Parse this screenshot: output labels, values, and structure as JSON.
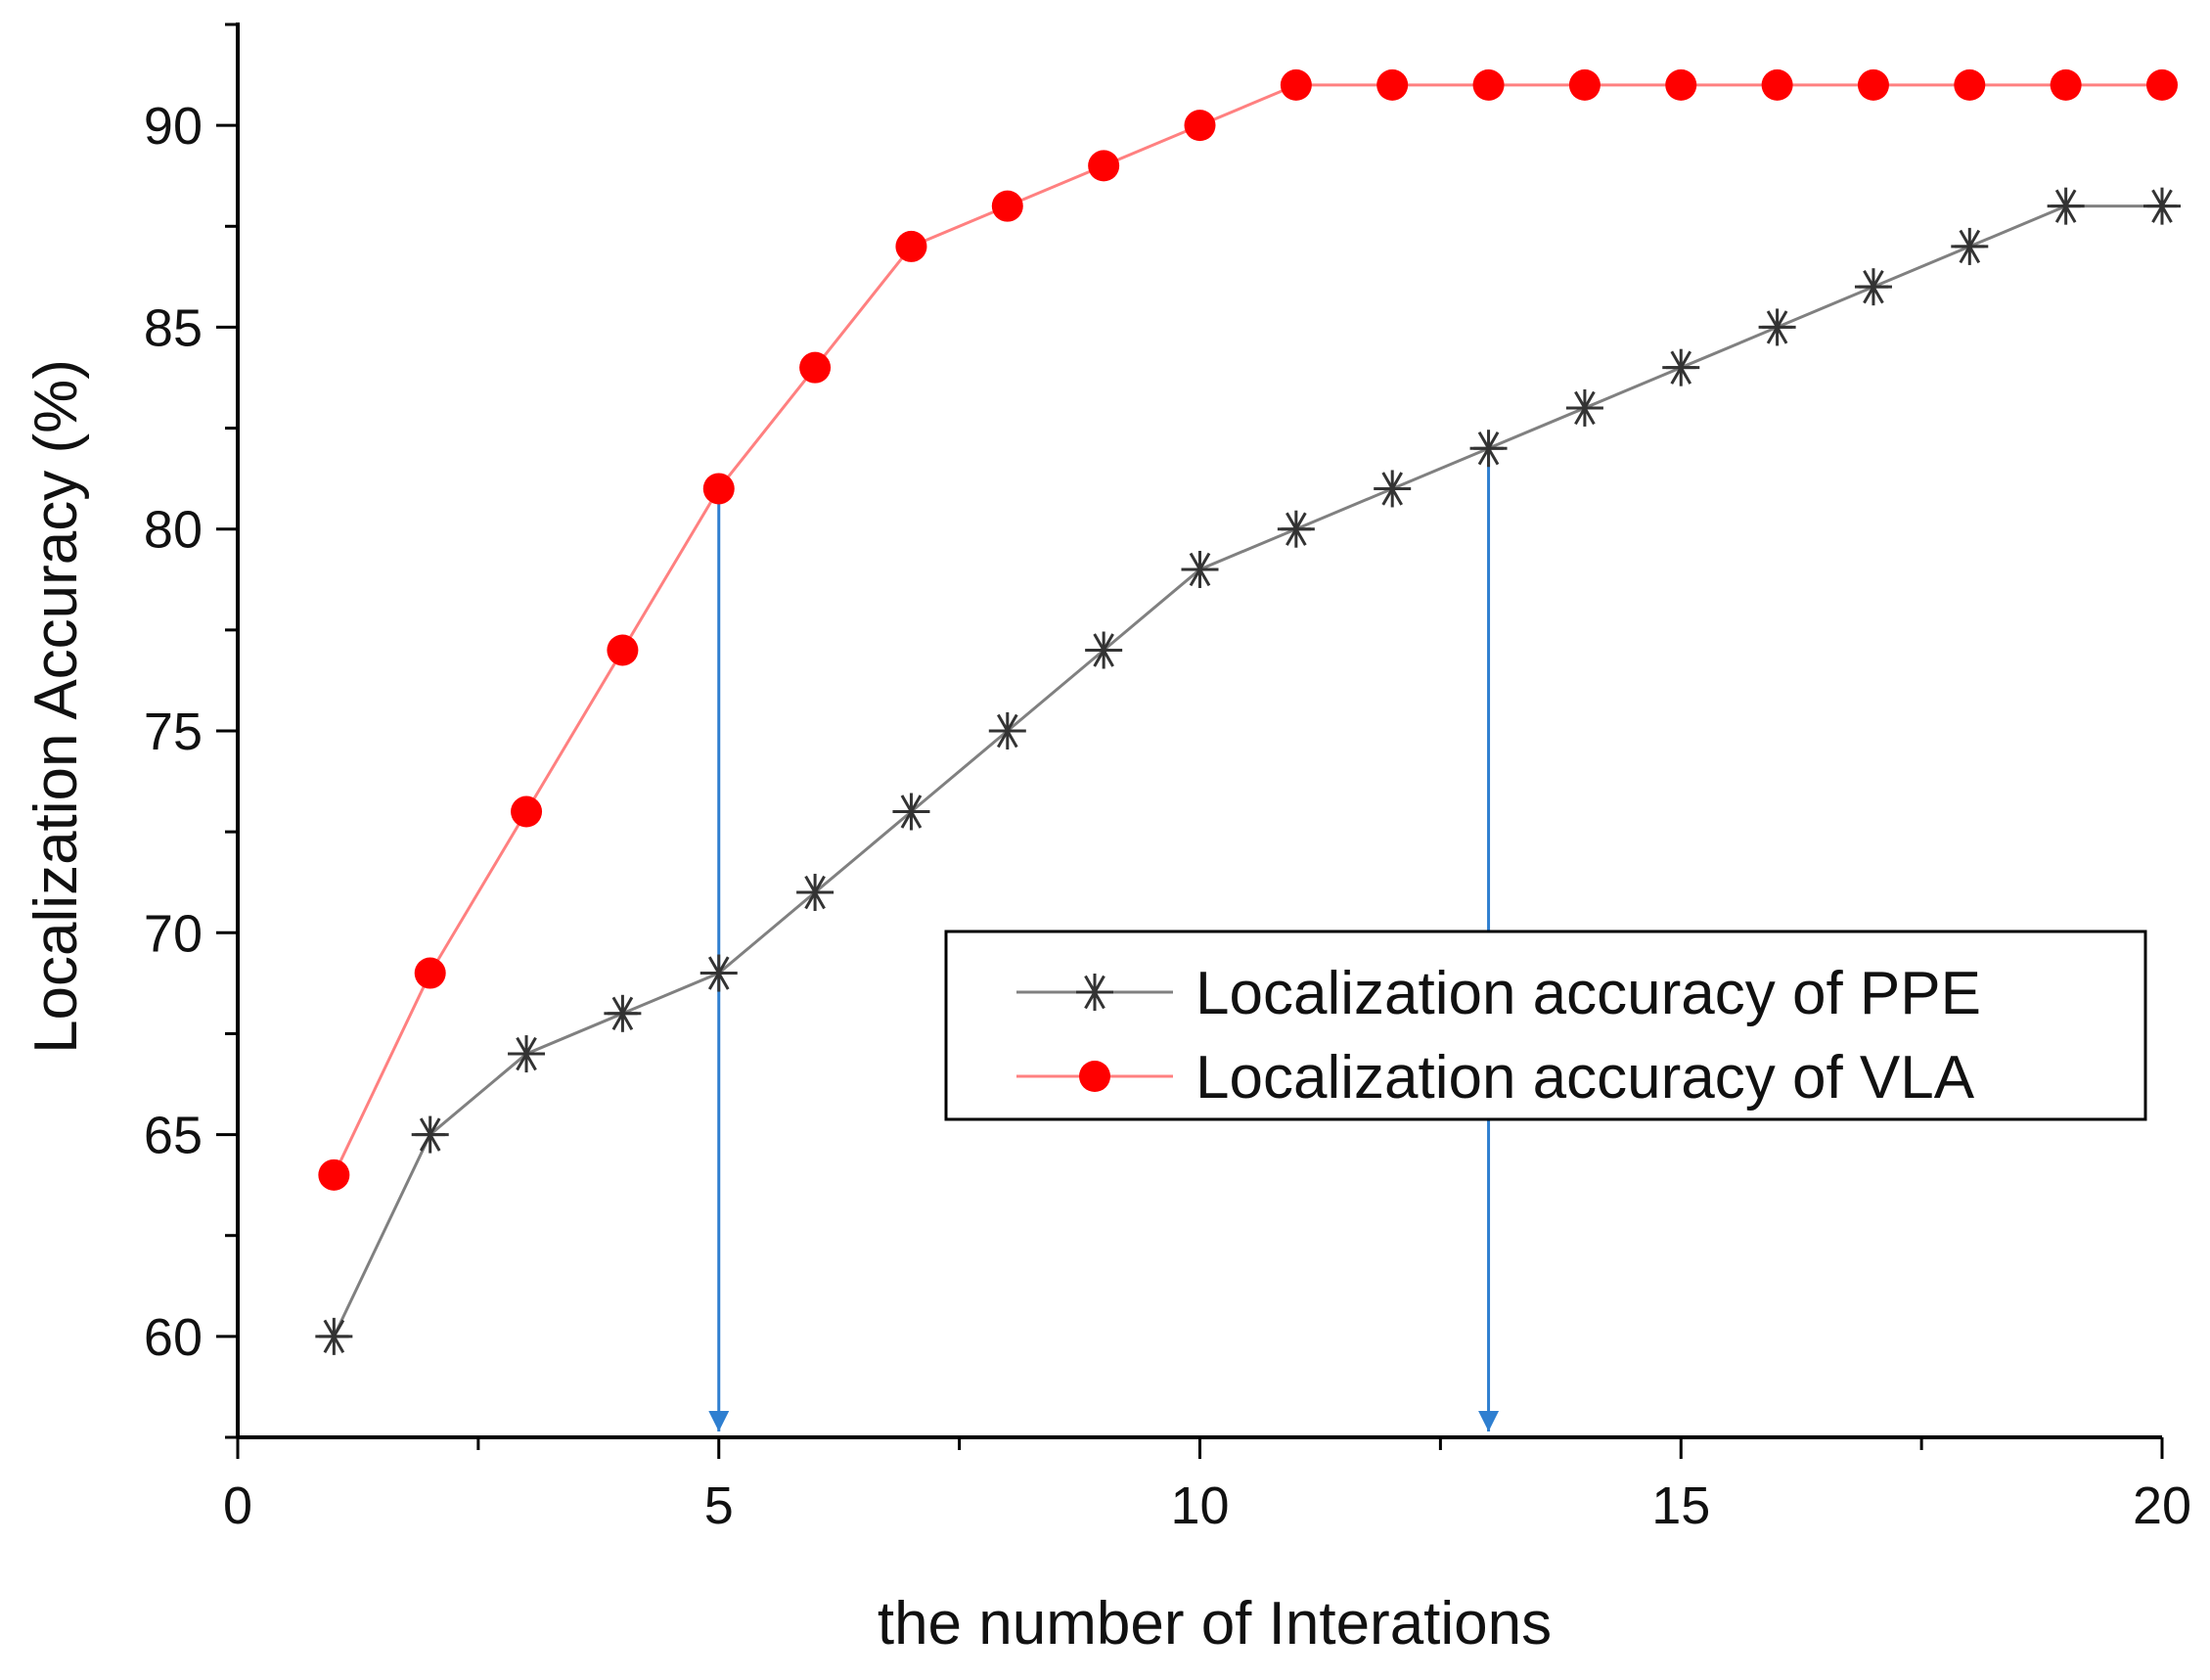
{
  "chart_data": {
    "type": "line",
    "xlabel": "the number of Interations",
    "ylabel": "Localization Accuracy (%)",
    "xlim": [
      0,
      20
    ],
    "ylim": [
      57.5,
      92.5
    ],
    "xticks": [
      0,
      5,
      10,
      15,
      20
    ],
    "yticks": [
      60,
      65,
      70,
      75,
      80,
      85,
      90
    ],
    "grid": false,
    "legend_position": "center-right",
    "series": [
      {
        "name": "Localization accuracy of PPE",
        "color": "#808080",
        "marker": "asterisk",
        "x": [
          1,
          2,
          3,
          4,
          5,
          6,
          7,
          8,
          9,
          10,
          11,
          12,
          13,
          14,
          15,
          16,
          17,
          18,
          19,
          20
        ],
        "values": [
          60,
          65,
          67,
          68,
          69,
          71,
          73,
          75,
          77,
          79,
          80,
          81,
          82,
          83,
          84,
          85,
          86,
          87,
          88,
          88
        ]
      },
      {
        "name": "Localization accuracy of VLA",
        "color": "#ff0000",
        "line_color": "#ff8080",
        "marker": "circle",
        "x": [
          1,
          2,
          3,
          4,
          5,
          6,
          7,
          8,
          9,
          10,
          11,
          12,
          13,
          14,
          15,
          16,
          17,
          18,
          19,
          20
        ],
        "values": [
          64,
          69,
          73,
          77,
          81,
          84,
          87,
          88,
          89,
          90,
          91,
          91,
          91,
          91,
          91,
          91,
          91,
          91,
          91,
          91
        ]
      }
    ],
    "annotations": [
      {
        "type": "drop-arrow",
        "x": 5,
        "from_y": 81,
        "color": "#2f7fd0"
      },
      {
        "type": "drop-arrow",
        "x": 13,
        "from_y": 82,
        "color": "#2f7fd0"
      }
    ]
  }
}
